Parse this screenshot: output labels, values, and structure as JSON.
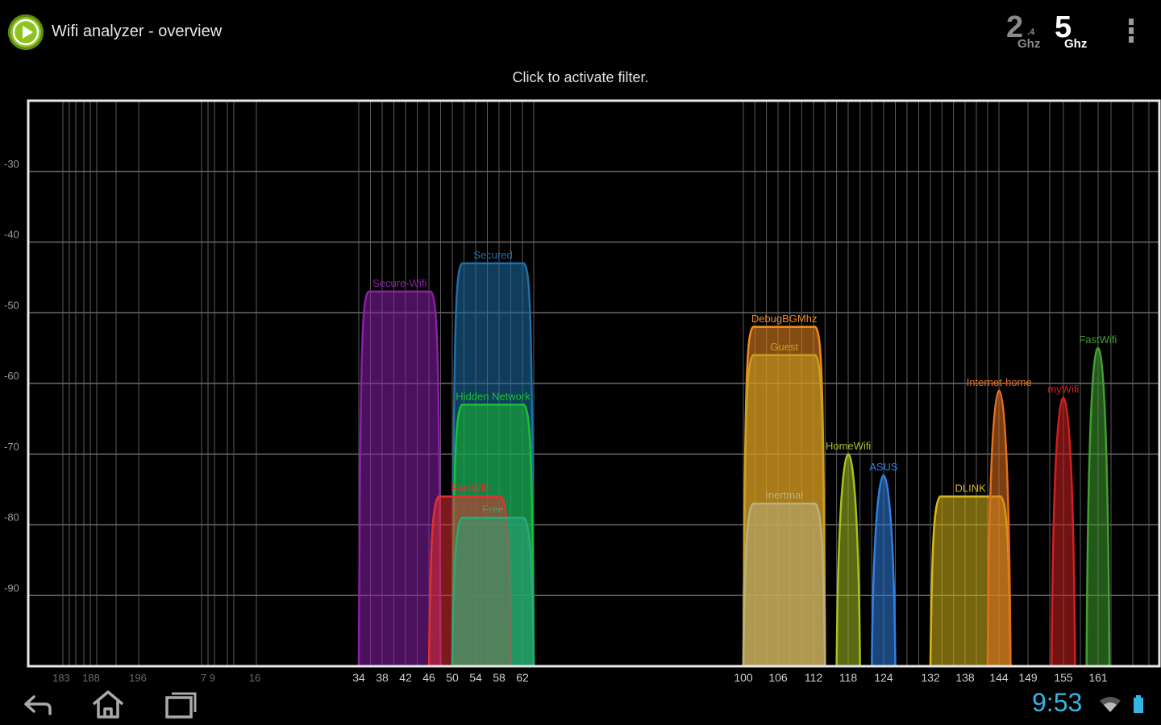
{
  "app": {
    "title": "Wifi analyzer - overview",
    "band_24": {
      "main": "2",
      "sub": ".4",
      "unit": "Ghz"
    },
    "band_5": {
      "main": "5",
      "unit": "Ghz"
    }
  },
  "filter_hint": "Click to activate filter.",
  "status": {
    "time": "9:53"
  },
  "colors": {
    "accent": "#33b5e5",
    "app_icon": "#8fc31f"
  },
  "chart_data": {
    "type": "area",
    "y_range": [
      -100,
      -20
    ],
    "y_ticks": [
      -30,
      -40,
      -50,
      -60,
      -70,
      -80,
      -90
    ],
    "x_ticks_dim": [
      "183",
      "188",
      "196",
      "7 9",
      "16"
    ],
    "x_ticks": [
      "34",
      "38",
      "42",
      "46",
      "50",
      "54",
      "58",
      "62",
      "100",
      "106",
      "112",
      "118",
      "124",
      "132",
      "138",
      "144",
      "149",
      "155",
      "161"
    ],
    "networks": [
      {
        "ssid": "Secure-Wifi",
        "start_ch": 34,
        "end_ch": 48,
        "level": -47,
        "color": "#8b1fa8"
      },
      {
        "ssid": "Secured",
        "start_ch": 50,
        "end_ch": 64,
        "level": -43,
        "color": "#1f6fa8"
      },
      {
        "ssid": "Hidden Network",
        "start_ch": 50,
        "end_ch": 64,
        "level": -63,
        "color": "#18c030"
      },
      {
        "ssid": "FastWifi",
        "start_ch": 46,
        "end_ch": 60,
        "level": -76,
        "color": "#e03030"
      },
      {
        "ssid": "Free",
        "start_ch": 50,
        "end_ch": 64,
        "level": -79,
        "color": "#2aa87a"
      },
      {
        "ssid": "DebugBGMhz",
        "start_ch": 100,
        "end_ch": 114,
        "level": -52,
        "color": "#f08a20"
      },
      {
        "ssid": "Guest",
        "start_ch": 100,
        "end_ch": 114,
        "level": -56,
        "color": "#c8a020"
      },
      {
        "ssid": "Inertmal",
        "start_ch": 100,
        "end_ch": 114,
        "level": -77,
        "color": "#b8b080"
      },
      {
        "ssid": "HomeWifi",
        "start_ch": 116,
        "end_ch": 120,
        "level": -70,
        "color": "#a8c020"
      },
      {
        "ssid": "ASUS",
        "start_ch": 122,
        "end_ch": 126,
        "level": -73,
        "color": "#3080e0"
      },
      {
        "ssid": "DLINK",
        "start_ch": 132,
        "end_ch": 146,
        "level": -76,
        "color": "#d8b818"
      },
      {
        "ssid": "Internet-home",
        "start_ch": 142,
        "end_ch": 146,
        "level": -61,
        "color": "#e07020"
      },
      {
        "ssid": "myWifi",
        "start_ch": 153,
        "end_ch": 157,
        "level": -62,
        "color": "#d02020"
      },
      {
        "ssid": "FastWifi",
        "start_ch": 159,
        "end_ch": 163,
        "level": -55,
        "color": "#40a030"
      }
    ]
  }
}
